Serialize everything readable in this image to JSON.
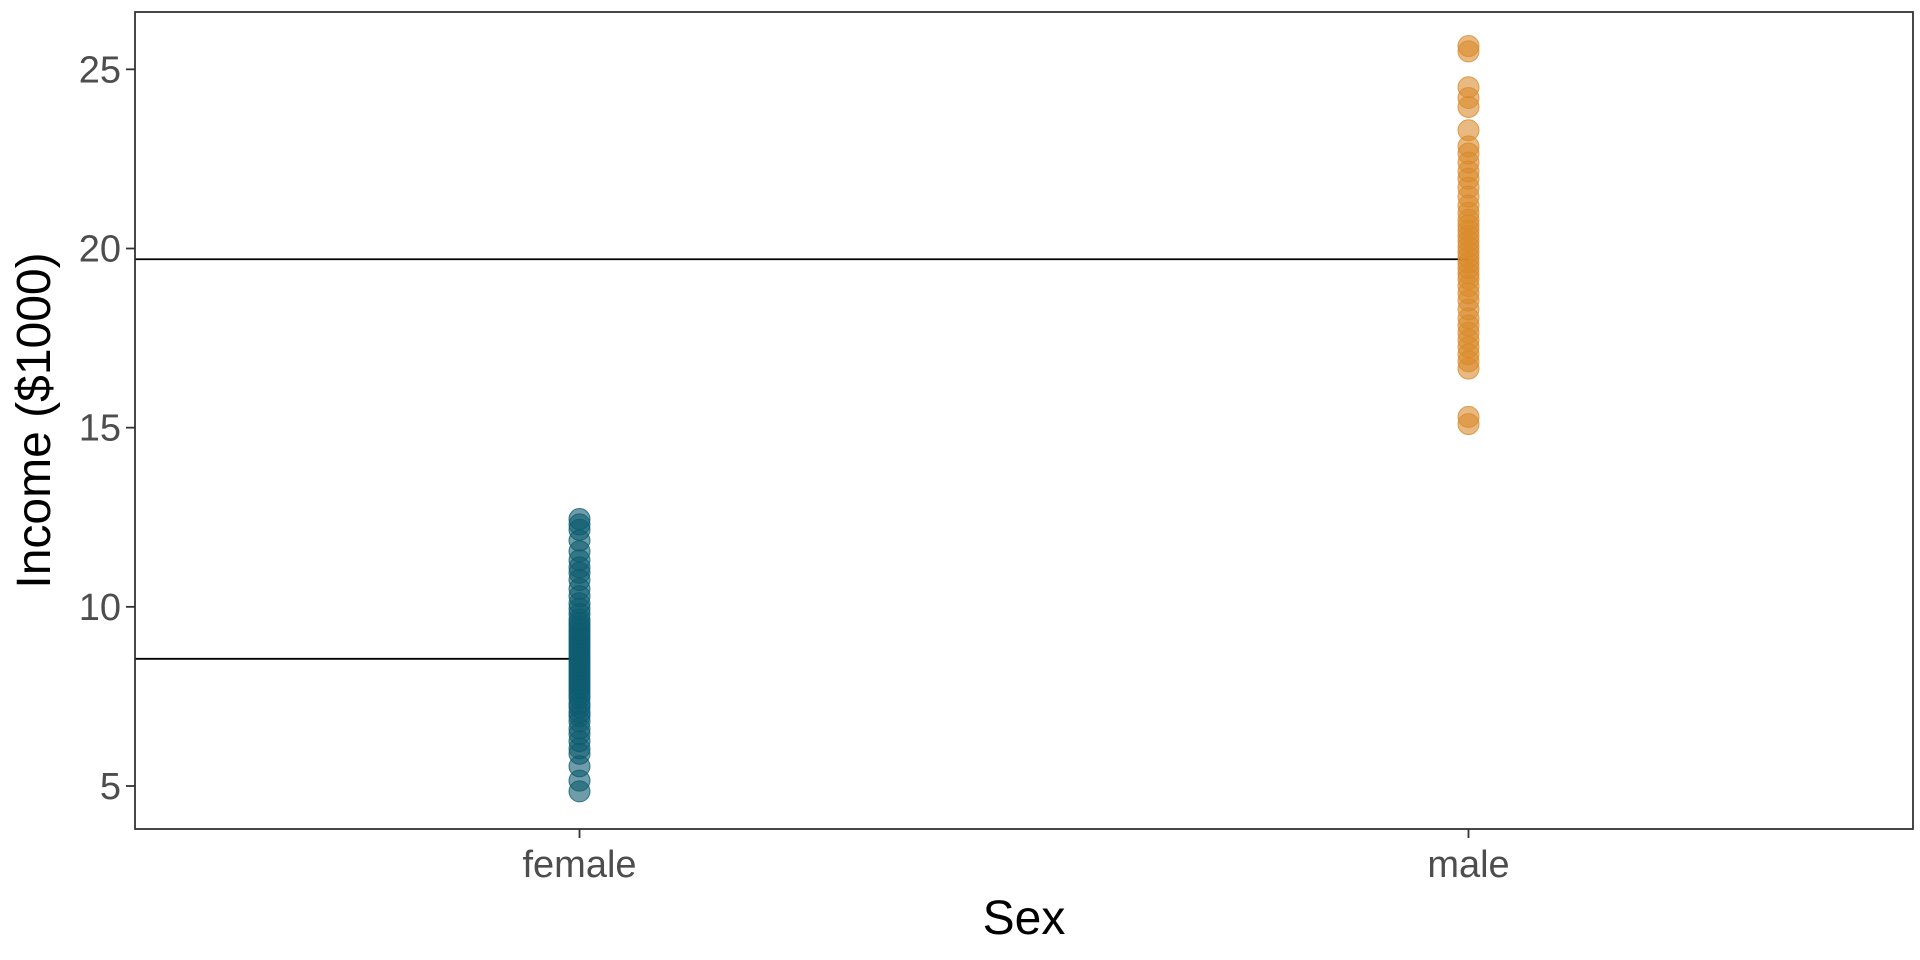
{
  "chart_data": {
    "type": "scatter",
    "xlabel": "Sex",
    "ylabel": "Income ($1000)",
    "categories": [
      "female",
      "male"
    ],
    "ylim": [
      3.8,
      26.6
    ],
    "yticks": [
      5,
      10,
      15,
      20,
      25
    ],
    "grid": false,
    "series": [
      {
        "category": "female",
        "color": "#0d5b70",
        "mean": 8.55,
        "values": [
          4.85,
          5.15,
          5.55,
          5.9,
          6.05,
          6.25,
          6.45,
          6.6,
          6.8,
          6.95,
          7.05,
          7.2,
          7.3,
          7.45,
          7.55,
          7.65,
          7.75,
          7.85,
          7.95,
          8.05,
          8.15,
          8.25,
          8.35,
          8.45,
          8.55,
          8.65,
          8.75,
          8.85,
          8.95,
          9.05,
          9.15,
          9.25,
          9.35,
          9.45,
          9.55,
          9.65,
          9.8,
          9.95,
          10.1,
          10.3,
          10.5,
          10.75,
          10.95,
          11.1,
          11.3,
          11.55,
          11.85,
          12.15,
          12.3,
          12.45
        ]
      },
      {
        "category": "male",
        "color": "#d98b2b",
        "mean": 19.7,
        "values": [
          15.1,
          15.3,
          16.65,
          16.85,
          17.05,
          17.25,
          17.45,
          17.65,
          17.85,
          18.05,
          18.3,
          18.55,
          18.75,
          18.95,
          19.15,
          19.3,
          19.45,
          19.6,
          19.75,
          19.9,
          20.05,
          20.2,
          20.35,
          20.5,
          20.65,
          20.8,
          21.0,
          21.2,
          21.45,
          21.7,
          21.95,
          22.15,
          22.4,
          22.65,
          22.85,
          23.3,
          23.95,
          24.2,
          24.5,
          25.5,
          25.65
        ]
      }
    ]
  }
}
